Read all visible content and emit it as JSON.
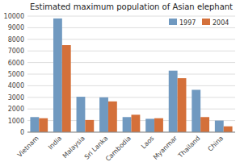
{
  "chart_data": {
    "type": "bar",
    "title": "Estimated maximum population of Asian elephant",
    "categories": [
      "Vietnam",
      "India",
      "Malaysia",
      "Sri Lanka",
      "Cambodia",
      "Laos",
      "Myanmar",
      "Thailand",
      "China"
    ],
    "series": [
      {
        "name": "1997",
        "color": "#7099C0",
        "values": [
          1300,
          9800,
          3050,
          3000,
          1300,
          1150,
          5300,
          3650,
          1000
        ]
      },
      {
        "name": "2004",
        "color": "#D4703A",
        "values": [
          1200,
          7500,
          1050,
          2650,
          1500,
          1200,
          4650,
          1300,
          500
        ]
      }
    ],
    "ylim": [
      0,
      10000
    ],
    "yticks": [
      0,
      1000,
      2000,
      3000,
      4000,
      5000,
      6000,
      7000,
      8000,
      9000,
      10000
    ],
    "grid": true,
    "legend": "upper right"
  }
}
